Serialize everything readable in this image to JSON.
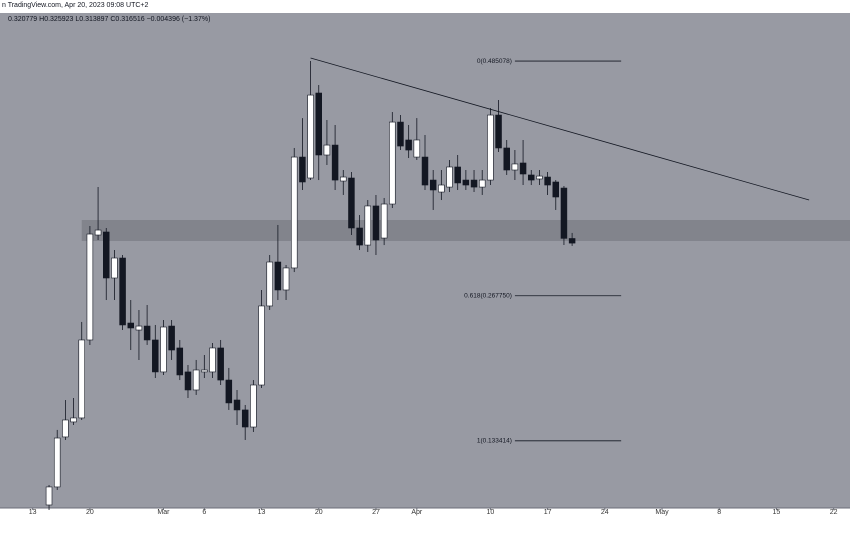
{
  "chart_data": {
    "type": "candlestick",
    "title": "n TradingView.com, Apr 20, 2023 09:08 UTC+2",
    "ohlc_text": "0.320779  H0.325923  L0.313897  C0.316516  −0.004396 (−1.37%)",
    "up_color": "#ffffff",
    "down_color": "#131722",
    "x": [
      "2023-02-15",
      "2023-02-16",
      "2023-02-17",
      "2023-02-18",
      "2023-02-19",
      "2023-02-20",
      "2023-02-21",
      "2023-02-22",
      "2023-02-23",
      "2023-02-24",
      "2023-02-25",
      "2023-02-26",
      "2023-02-27",
      "2023-02-28",
      "2023-03-01",
      "2023-03-02",
      "2023-03-03",
      "2023-03-04",
      "2023-03-05",
      "2023-03-06",
      "2023-03-07",
      "2023-03-08",
      "2023-03-09",
      "2023-03-10",
      "2023-03-11",
      "2023-03-12",
      "2023-03-13",
      "2023-03-14",
      "2023-03-15",
      "2023-03-16",
      "2023-03-17",
      "2023-03-18",
      "2023-03-19",
      "2023-03-20",
      "2023-03-21",
      "2023-03-22",
      "2023-03-23",
      "2023-03-24",
      "2023-03-25",
      "2023-03-26",
      "2023-03-27",
      "2023-03-28",
      "2023-03-29",
      "2023-03-30",
      "2023-03-31",
      "2023-04-01",
      "2023-04-02",
      "2023-04-03",
      "2023-04-04",
      "2023-04-05",
      "2023-04-06",
      "2023-04-07",
      "2023-04-08",
      "2023-04-09",
      "2023-04-10",
      "2023-04-11",
      "2023-04-12",
      "2023-04-13",
      "2023-04-14",
      "2023-04-15",
      "2023-04-16",
      "2023-04-17",
      "2023-04-18",
      "2023-04-19",
      "2023-04-20"
    ],
    "ohlc": [
      [
        0.074,
        0.0925,
        0.0694,
        0.0907
      ],
      [
        0.0907,
        0.1435,
        0.0879,
        0.136
      ],
      [
        0.137,
        0.1712,
        0.1342,
        0.1527
      ],
      [
        0.1509,
        0.1731,
        0.1481,
        0.1546
      ],
      [
        0.1546,
        0.2435,
        0.1527,
        0.2268
      ],
      [
        0.2268,
        0.3323,
        0.2222,
        0.3249
      ],
      [
        0.324,
        0.3685,
        0.3194,
        0.3286
      ],
      [
        0.3268,
        0.3305,
        0.2638,
        0.2842
      ],
      [
        0.2842,
        0.3101,
        0.2638,
        0.3027
      ],
      [
        0.3027,
        0.3055,
        0.236,
        0.2407
      ],
      [
        0.2425,
        0.2638,
        0.2175,
        0.2379
      ],
      [
        0.236,
        0.2546,
        0.2083,
        0.2397
      ],
      [
        0.2397,
        0.2592,
        0.2222,
        0.2268
      ],
      [
        0.2268,
        0.2407,
        0.1916,
        0.1972
      ],
      [
        0.1972,
        0.2453,
        0.1944,
        0.2388
      ],
      [
        0.2397,
        0.2453,
        0.2083,
        0.2175
      ],
      [
        0.2194,
        0.2268,
        0.1897,
        0.1944
      ],
      [
        0.1972,
        0.2036,
        0.1731,
        0.1805
      ],
      [
        0.1805,
        0.2083,
        0.1759,
        0.199
      ],
      [
        0.1972,
        0.2129,
        0.1916,
        0.199
      ],
      [
        0.1972,
        0.224,
        0.1916,
        0.2194
      ],
      [
        0.2194,
        0.2268,
        0.1851,
        0.1897
      ],
      [
        0.1897,
        0.2009,
        0.162,
        0.1685
      ],
      [
        0.1712,
        0.1805,
        0.1481,
        0.162
      ],
      [
        0.162,
        0.1666,
        0.1342,
        0.1462
      ],
      [
        0.1462,
        0.1897,
        0.1416,
        0.1851
      ],
      [
        0.1851,
        0.2731,
        0.1823,
        0.2583
      ],
      [
        0.2583,
        0.3055,
        0.2546,
        0.299
      ],
      [
        0.299,
        0.3333,
        0.2638,
        0.2731
      ],
      [
        0.2731,
        0.2962,
        0.2638,
        0.2935
      ],
      [
        0.2935,
        0.4046,
        0.2897,
        0.3962
      ],
      [
        0.3962,
        0.4323,
        0.3657,
        0.3731
      ],
      [
        0.3768,
        0.4851,
        0.3749,
        0.4536
      ],
      [
        0.4555,
        0.4629,
        0.3749,
        0.3981
      ],
      [
        0.3981,
        0.4305,
        0.3888,
        0.4073
      ],
      [
        0.4073,
        0.4259,
        0.3657,
        0.3749
      ],
      [
        0.374,
        0.3842,
        0.3611,
        0.3777
      ],
      [
        0.3768,
        0.3823,
        0.324,
        0.3305
      ],
      [
        0.3305,
        0.3425,
        0.3101,
        0.3147
      ],
      [
        0.3147,
        0.3564,
        0.3083,
        0.3509
      ],
      [
        0.3509,
        0.3611,
        0.3055,
        0.3194
      ],
      [
        0.3212,
        0.3583,
        0.3147,
        0.3527
      ],
      [
        0.3527,
        0.4379,
        0.349,
        0.4286
      ],
      [
        0.4286,
        0.4351,
        0.4027,
        0.4064
      ],
      [
        0.412,
        0.4259,
        0.3953,
        0.4027
      ],
      [
        0.3962,
        0.4323,
        0.3935,
        0.412
      ],
      [
        0.3962,
        0.4166,
        0.3657,
        0.3703
      ],
      [
        0.3749,
        0.3842,
        0.3472,
        0.3657
      ],
      [
        0.3638,
        0.3842,
        0.3564,
        0.3703
      ],
      [
        0.3684,
        0.3935,
        0.3638,
        0.387
      ],
      [
        0.387,
        0.3981,
        0.3657,
        0.3722
      ],
      [
        0.3749,
        0.3842,
        0.3657,
        0.3703
      ],
      [
        0.3749,
        0.3842,
        0.3638,
        0.3684
      ],
      [
        0.3684,
        0.3842,
        0.3611,
        0.3749
      ],
      [
        0.3749,
        0.4416,
        0.3703,
        0.4351
      ],
      [
        0.4351,
        0.449,
        0.4009,
        0.4046
      ],
      [
        0.4046,
        0.412,
        0.3796,
        0.3842
      ],
      [
        0.3842,
        0.4027,
        0.3749,
        0.3898
      ],
      [
        0.3907,
        0.412,
        0.3703,
        0.3805
      ],
      [
        0.3796,
        0.3842,
        0.3703,
        0.3749
      ],
      [
        0.3759,
        0.3842,
        0.3703,
        0.3786
      ],
      [
        0.3777,
        0.3823,
        0.3611,
        0.3703
      ],
      [
        0.3731,
        0.3749,
        0.3472,
        0.3592
      ],
      [
        0.3675,
        0.3694,
        0.3147,
        0.3209
      ],
      [
        0.320779,
        0.325923,
        0.313897,
        0.316516
      ]
    ],
    "xlim": [
      "2023-02-09",
      "2023-05-24"
    ],
    "ylim": [
      0.0712,
      0.5296
    ],
    "xticks": [
      {
        "value": "2023-02-13",
        "label": "13"
      },
      {
        "value": "2023-02-20",
        "label": "20"
      },
      {
        "value": "2023-03-01",
        "label": "Mar"
      },
      {
        "value": "2023-03-06",
        "label": "6"
      },
      {
        "value": "2023-03-13",
        "label": "13"
      },
      {
        "value": "2023-03-20",
        "label": "20"
      },
      {
        "value": "2023-03-27",
        "label": "27"
      },
      {
        "value": "2023-04-01",
        "label": "Apr"
      },
      {
        "value": "2023-04-10",
        "label": "10"
      },
      {
        "value": "2023-04-17",
        "label": "17"
      },
      {
        "value": "2023-04-24",
        "label": "24"
      },
      {
        "value": "2023-05-01",
        "label": "May"
      },
      {
        "value": "2023-05-08",
        "label": "8"
      },
      {
        "value": "2023-05-15",
        "label": "15"
      },
      {
        "value": "2023-05-22",
        "label": "22"
      }
    ],
    "trendline": {
      "x": [
        "2023-03-19",
        "2023-05-19"
      ],
      "values": [
        0.4879,
        0.3564
      ]
    },
    "zone": {
      "x_start": "2023-02-19",
      "range": [
        0.3185,
        0.3379
      ]
    },
    "fib": {
      "x": [
        "2023-04-13",
        "2023-04-26"
      ],
      "levels": [
        {
          "label": "0(0.485078)",
          "value": 0.485078
        },
        {
          "label": "0.618(0.267750)",
          "value": 0.26775
        },
        {
          "label": "1(0.133414)",
          "value": 0.133414
        }
      ]
    }
  }
}
